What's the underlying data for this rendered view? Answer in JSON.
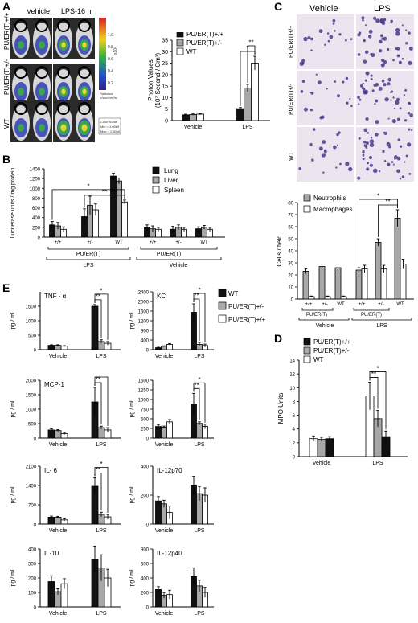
{
  "panels": {
    "A": "A",
    "B": "B",
    "C": "C",
    "D": "D",
    "E": "E"
  },
  "colors": {
    "black": "#111111",
    "gray": "#a8a8a8",
    "white": "#ffffff",
    "mouse_bg": "#2a2a2a",
    "blue": "#3a46b8",
    "green": "#3aa84a",
    "yellow": "#e6d23a",
    "stain_bg": "#ece5f0",
    "cell": "#4a3a8a"
  },
  "panelA": {
    "col_labels": [
      "Vehicle",
      "LPS-16 h"
    ],
    "row_labels": [
      "PU/ER(T)+/+",
      "PU/ER(T)+/-",
      "WT"
    ],
    "colorbar_ticks": [
      "1.0",
      "0.8",
      "0.6",
      "0.4",
      "0.2"
    ],
    "colorbar_unit": "x10⁶",
    "colorbar_caption": [
      "Radiance",
      "p/sec/cm²/sr",
      "Color Scale",
      "Min = 1.00e5",
      "Max = 2.50e6"
    ]
  },
  "panelC": {
    "col_labels": [
      "Vehicle",
      "LPS"
    ],
    "row_labels": [
      "PU/ER(T)+/+",
      "PU/ER(T)+/-",
      "WT"
    ]
  },
  "chart_data": [
    {
      "id": "A",
      "type": "bar",
      "ylabel": "Photon Values",
      "ylabel2": "(10⁷ Second / Cm²)",
      "groups": [
        "Vehicle",
        "LPS"
      ],
      "ylim": [
        0,
        35
      ],
      "yticks": [
        0,
        5,
        10,
        15,
        20,
        25,
        30,
        35
      ],
      "series": [
        {
          "name": "PU/ER(T)+/+",
          "color": "black",
          "values": [
            2.5,
            5.2
          ],
          "err": [
            0.3,
            0.5
          ]
        },
        {
          "name": "PU/ER(T)+/-",
          "color": "gray",
          "values": [
            2.6,
            14.2
          ],
          "err": [
            0.3,
            1.6
          ]
        },
        {
          "name": "WT",
          "color": "white",
          "values": [
            2.8,
            25.0
          ],
          "err": [
            0.3,
            3.0
          ]
        }
      ],
      "sig": [
        {
          "from": 0,
          "to": 2,
          "label": "*",
          "g": 1,
          "lvl": 0
        },
        {
          "from": 1,
          "to": 2,
          "label": "**",
          "g": 1,
          "lvl": 1
        }
      ]
    },
    {
      "id": "B",
      "type": "bar",
      "ylabel": "Luciferase units / mg protein",
      "groups": [
        "+/+",
        "+/-",
        "WT",
        "+/+",
        "+/-",
        "WT"
      ],
      "ylim": [
        0,
        1400
      ],
      "yticks": [
        0,
        200,
        400,
        600,
        800,
        1000,
        1200,
        1400
      ],
      "series": [
        {
          "name": "Lung",
          "color": "black",
          "values": [
            250,
            420,
            1250,
            190,
            160,
            170
          ],
          "err": [
            70,
            160,
            60,
            60,
            60,
            40
          ]
        },
        {
          "name": "Liver",
          "color": "gray",
          "values": [
            230,
            650,
            1150,
            170,
            200,
            200
          ],
          "err": [
            70,
            190,
            60,
            60,
            50,
            40
          ]
        },
        {
          "name": "Spleen",
          "color": "white",
          "values": [
            160,
            560,
            720,
            160,
            160,
            160
          ],
          "err": [
            50,
            120,
            40,
            40,
            40,
            40
          ]
        }
      ],
      "sig": [
        {
          "from": 0,
          "to": 2,
          "label": "*",
          "g": 2,
          "gfrom": 0,
          "lvl": 1
        },
        {
          "from": 0,
          "to": 2,
          "label": "**",
          "g": 2,
          "gfrom": 1,
          "lvl": 0
        }
      ],
      "group_caption": [
        "PU/ER(T)",
        "LPS",
        "PU/ER(T)",
        "Vehicle"
      ]
    },
    {
      "id": "C",
      "type": "bar",
      "ylabel": "Cells / field",
      "groups": [
        "+/+",
        "+/-",
        "WT",
        "+/+",
        "+/-",
        "WT"
      ],
      "ylim": [
        0,
        80
      ],
      "yticks": [
        0,
        10,
        20,
        30,
        40,
        50,
        60,
        70,
        80
      ],
      "series": [
        {
          "name": "Neutrophils",
          "color": "gray",
          "values": [
            23,
            27,
            26,
            24,
            47,
            67
          ],
          "err": [
            2,
            2,
            3,
            2,
            3,
            7
          ]
        },
        {
          "name": "Macrophages",
          "color": "white",
          "values": [
            2,
            2,
            2,
            25,
            25,
            29
          ],
          "err": [
            0.5,
            0.5,
            0.5,
            3,
            3,
            4
          ]
        }
      ],
      "sig": [
        {
          "from": 0,
          "to": 0,
          "label": "*",
          "g": 5,
          "gfrom": 3,
          "lvl": 1
        },
        {
          "from": 0,
          "to": 0,
          "label": "**",
          "g": 5,
          "gfrom": 4,
          "lvl": 0
        }
      ],
      "group_caption": [
        "PU/ER(T)",
        "Vehicle",
        "PU/ER(T)",
        "LPS"
      ]
    },
    {
      "id": "D",
      "type": "bar",
      "ylabel": "MPO Units",
      "groups": [
        "Vehicle",
        "LPS"
      ],
      "ylim": [
        0,
        14
      ],
      "yticks": [
        0,
        2,
        4,
        6,
        8,
        10,
        12,
        14
      ],
      "series": [
        {
          "name": "PU/ER(T)+/+",
          "color": "white",
          "values": [
            2.6,
            8.8
          ],
          "err": [
            0.4,
            2.0
          ]
        },
        {
          "name": "PU/ER(T)+/-",
          "color": "gray",
          "values": [
            2.5,
            5.5
          ],
          "err": [
            0.3,
            1.2
          ]
        },
        {
          "name": "WT",
          "color": "black",
          "values": [
            2.6,
            2.9
          ],
          "err": [
            0.3,
            0.8
          ]
        }
      ],
      "sig": [
        {
          "from": 0,
          "to": 2,
          "label": "*",
          "g": 1,
          "lvl": 1
        },
        {
          "from": 0,
          "to": 1,
          "label": "**",
          "g": 1,
          "lvl": 0
        }
      ]
    },
    {
      "id": "E1",
      "type": "bar",
      "title": "TNF - α",
      "ylabel": "pg / ml",
      "groups": [
        "Vehicle",
        "LPS"
      ],
      "ylim": [
        0,
        2000
      ],
      "yticks": [
        0,
        500,
        1000,
        1500
      ],
      "series": [
        {
          "name": "WT",
          "color": "black",
          "values": [
            150,
            1500
          ],
          "err": [
            20,
            60
          ]
        },
        {
          "name": "PU/ER(T)+/-",
          "color": "gray",
          "values": [
            150,
            280
          ],
          "err": [
            20,
            60
          ]
        },
        {
          "name": "PU/ER(T)+/+",
          "color": "white",
          "values": [
            120,
            220
          ],
          "err": [
            20,
            60
          ]
        }
      ],
      "sig": [
        {
          "from": 0,
          "to": 2,
          "label": "*",
          "g": 1,
          "lvl": 1
        },
        {
          "from": 0,
          "to": 1,
          "label": "**",
          "g": 1,
          "lvl": 0
        }
      ]
    },
    {
      "id": "E2",
      "type": "bar",
      "title": "KC",
      "ylabel": "pg / ml",
      "groups": [
        "Vehicle",
        "LPS"
      ],
      "ylim": [
        0,
        2400
      ],
      "yticks": [
        0,
        400,
        800,
        1200,
        1600,
        2000,
        2400
      ],
      "series": [
        {
          "name": "WT",
          "color": "black",
          "values": [
            80,
            1550
          ],
          "err": [
            20,
            350
          ]
        },
        {
          "name": "PU/ER(T)+/-",
          "color": "gray",
          "values": [
            140,
            220
          ],
          "err": [
            20,
            80
          ]
        },
        {
          "name": "PU/ER(T)+/+",
          "color": "white",
          "values": [
            220,
            170
          ],
          "err": [
            30,
            60
          ]
        }
      ],
      "sig": [
        {
          "from": 0,
          "to": 2,
          "label": "*",
          "g": 1,
          "lvl": 1
        },
        {
          "from": 0,
          "to": 1,
          "label": "**",
          "g": 1,
          "lvl": 0
        }
      ]
    },
    {
      "id": "E3",
      "type": "bar",
      "title": "MCP-1",
      "ylabel": "pg / ml",
      "groups": [
        "Vehicle",
        "LPS"
      ],
      "ylim": [
        0,
        2000
      ],
      "yticks": [
        0,
        500,
        1000,
        1500,
        2000
      ],
      "series": [
        {
          "name": "WT",
          "color": "black",
          "values": [
            280,
            1250
          ],
          "err": [
            40,
            500
          ]
        },
        {
          "name": "PU/ER(T)+/-",
          "color": "gray",
          "values": [
            260,
            360
          ],
          "err": [
            30,
            50
          ]
        },
        {
          "name": "PU/ER(T)+/+",
          "color": "white",
          "values": [
            150,
            280
          ],
          "err": [
            40,
            80
          ]
        }
      ],
      "sig": [
        {
          "from": 0,
          "to": 2,
          "label": "*",
          "g": 1,
          "lvl": 1
        },
        {
          "from": 0,
          "to": 1,
          "label": "**",
          "g": 1,
          "lvl": 0
        }
      ]
    },
    {
      "id": "E4",
      "type": "bar",
      "title": "",
      "ylabel": "pg / ml",
      "groups": [
        "Vehicle",
        "LPS"
      ],
      "ylim": [
        0,
        1500
      ],
      "yticks": [
        0,
        250,
        500,
        750,
        1000,
        1250,
        1500
      ],
      "series": [
        {
          "name": "WT",
          "color": "black",
          "values": [
            300,
            880
          ],
          "err": [
            40,
            280
          ]
        },
        {
          "name": "PU/ER(T)+/-",
          "color": "gray",
          "values": [
            280,
            380
          ],
          "err": [
            30,
            40
          ]
        },
        {
          "name": "PU/ER(T)+/+",
          "color": "white",
          "values": [
            420,
            300
          ],
          "err": [
            60,
            60
          ]
        }
      ],
      "sig": [
        {
          "from": 0,
          "to": 2,
          "label": "*",
          "g": 1,
          "lvl": 1
        },
        {
          "from": 0,
          "to": 1,
          "label": "**",
          "g": 1,
          "lvl": 0
        }
      ]
    },
    {
      "id": "E5",
      "type": "bar",
      "title": "IL- 6",
      "ylabel": "pg / ml",
      "groups": [
        "Vehicle",
        "LPS"
      ],
      "ylim": [
        0,
        2100
      ],
      "yticks": [
        0,
        700,
        1400,
        2100
      ],
      "series": [
        {
          "name": "WT",
          "color": "black",
          "values": [
            250,
            1400
          ],
          "err": [
            40,
            280
          ]
        },
        {
          "name": "PU/ER(T)+/-",
          "color": "gray",
          "values": [
            250,
            350
          ],
          "err": [
            30,
            80
          ]
        },
        {
          "name": "PU/ER(T)+/+",
          "color": "white",
          "values": [
            150,
            260
          ],
          "err": [
            40,
            90
          ]
        }
      ],
      "sig": [
        {
          "from": 0,
          "to": 2,
          "label": "*",
          "g": 1,
          "lvl": 1
        },
        {
          "from": 0,
          "to": 1,
          "label": "**",
          "g": 1,
          "lvl": 0
        }
      ]
    },
    {
      "id": "E6",
      "type": "bar",
      "title": "IL-12p70",
      "ylabel": "pg / ml",
      "groups": [
        "Vehicle",
        "LPS"
      ],
      "ylim": [
        0,
        400
      ],
      "yticks": [
        0,
        200,
        400
      ],
      "series": [
        {
          "name": "WT",
          "color": "black",
          "values": [
            160,
            270
          ],
          "err": [
            30,
            60
          ]
        },
        {
          "name": "PU/ER(T)+/-",
          "color": "gray",
          "values": [
            140,
            210
          ],
          "err": [
            25,
            50
          ]
        },
        {
          "name": "PU/ER(T)+/+",
          "color": "white",
          "values": [
            80,
            200
          ],
          "err": [
            45,
            50
          ]
        }
      ],
      "sig": []
    },
    {
      "id": "E7",
      "type": "bar",
      "title": "IL-10",
      "ylabel": "pg / ml",
      "groups": [
        "Vehicle",
        "LPS"
      ],
      "ylim": [
        0,
        400
      ],
      "yticks": [
        0,
        100,
        200,
        300,
        400
      ],
      "series": [
        {
          "name": "WT",
          "color": "black",
          "values": [
            175,
            330
          ],
          "err": [
            40,
            90
          ]
        },
        {
          "name": "PU/ER(T)+/-",
          "color": "gray",
          "values": [
            105,
            270
          ],
          "err": [
            20,
            90
          ]
        },
        {
          "name": "PU/ER(T)+/+",
          "color": "white",
          "values": [
            160,
            200
          ],
          "err": [
            35,
            60
          ]
        }
      ],
      "sig": []
    },
    {
      "id": "E8",
      "type": "bar",
      "title": "IL-12p40",
      "ylabel": "pg / ml",
      "groups": [
        "Vehicle",
        "LPS"
      ],
      "ylim": [
        0,
        800
      ],
      "yticks": [
        0,
        200,
        400,
        600,
        800
      ],
      "series": [
        {
          "name": "WT",
          "color": "black",
          "values": [
            240,
            420
          ],
          "err": [
            40,
            120
          ]
        },
        {
          "name": "PU/ER(T)+/-",
          "color": "gray",
          "values": [
            160,
            290
          ],
          "err": [
            40,
            80
          ]
        },
        {
          "name": "PU/ER(T)+/+",
          "color": "white",
          "values": [
            170,
            200
          ],
          "err": [
            60,
            70
          ]
        }
      ],
      "sig": []
    }
  ],
  "legendE": [
    "WT",
    "PU/ER(T)+/-",
    "PU/ER(T)+/+"
  ]
}
